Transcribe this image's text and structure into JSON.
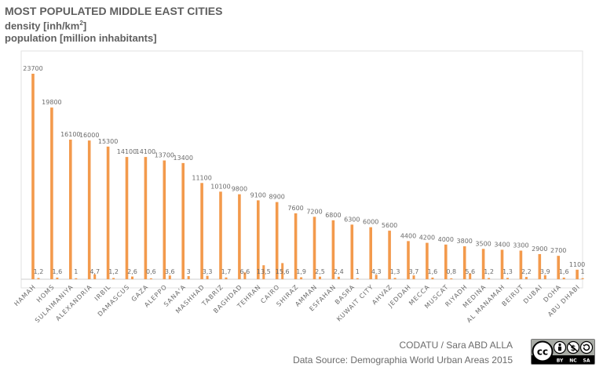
{
  "title": "MOST POPULATED MIDDLE EAST CITIES",
  "subtitle_density": "density [inh/km",
  "subtitle_density_sup": "2",
  "subtitle_density_end": "]",
  "subtitle_population": "population [million inhabitants]",
  "credit": "CODATU / Sara ABD ALLA",
  "source": "Data Source: Demographia World Urban Areas 2015",
  "license": {
    "badge_text": "cc",
    "labels": [
      "BY",
      "NC",
      "SA"
    ]
  },
  "colors": {
    "bar": "#f39a4c",
    "label": "#6b6b6b",
    "axis": "#cfcfcf",
    "title": "#5f5f5f"
  },
  "chart_data": {
    "type": "bar",
    "categories": [
      "HAMAH",
      "HOMS",
      "SULAIMANIYA",
      "ALEXANDRIA",
      "IRBIL",
      "DAMASCUS",
      "GAZA",
      "ALEPPO",
      "SANA'A",
      "MASHHAD",
      "TABRIZ",
      "BAGHDAD",
      "TEHRAN",
      "CAIRO",
      "SHIRAZ",
      "AMMAN",
      "ESFAHAN",
      "BASRA",
      "KUWAIT CITY",
      "AHVAZ",
      "JEDDAH",
      "MECCA",
      "MUSCAT",
      "RIYADH",
      "MEDINA",
      "AL MANAMAH",
      "BEIRUT",
      "DUBAI",
      "DOHA",
      "ABU DHABI"
    ],
    "series": [
      {
        "values": [
          23700,
          19800,
          16100,
          16000,
          15300,
          14100,
          14100,
          13700,
          13400,
          11100,
          10100,
          9800,
          9100,
          8900,
          7600,
          7200,
          6800,
          6300,
          6000,
          5600,
          4400,
          4200,
          4000,
          3800,
          3500,
          3400,
          3300,
          2900,
          2700,
          1100
        ]
      },
      {
        "values": [
          1.2,
          1.6,
          1,
          4.7,
          1.2,
          2.6,
          0.6,
          3.6,
          3,
          3.3,
          1.7,
          6.6,
          13.5,
          15.6,
          1.9,
          2.5,
          2.4,
          1,
          4.3,
          1.3,
          3.7,
          1.6,
          0.8,
          5.6,
          1.2,
          1.3,
          2.2,
          3.9,
          1.6,
          1
        ]
      }
    ],
    "value_labels_density": [
      "23700",
      "19800",
      "16100",
      "16000",
      "15300",
      "14100",
      "14100",
      "13700",
      "13400",
      "11100",
      "10100",
      "9800",
      "9100",
      "8900",
      "7600",
      "7200",
      "6800",
      "6300",
      "6000",
      "5600",
      "4400",
      "4200",
      "4000",
      "3800",
      "3500",
      "3400",
      "3300",
      "2900",
      "2700",
      "1100"
    ],
    "value_labels_population": [
      "1,2",
      "1,6",
      "1",
      "4,7",
      "1,2",
      "2,6",
      "0,6",
      "3,6",
      "3",
      "3,3",
      "1,7",
      "6,6",
      "13,5",
      "15,6",
      "1,9",
      "2,5",
      "2,4",
      "1",
      "4,3",
      "1,3",
      "3,7",
      "1,6",
      "0,8",
      "5,6",
      "1,2",
      "1,3",
      "2,2",
      "3,9",
      "1,6",
      "1"
    ],
    "ylim": [
      0,
      24000
    ],
    "grid": false,
    "legend": "none"
  }
}
